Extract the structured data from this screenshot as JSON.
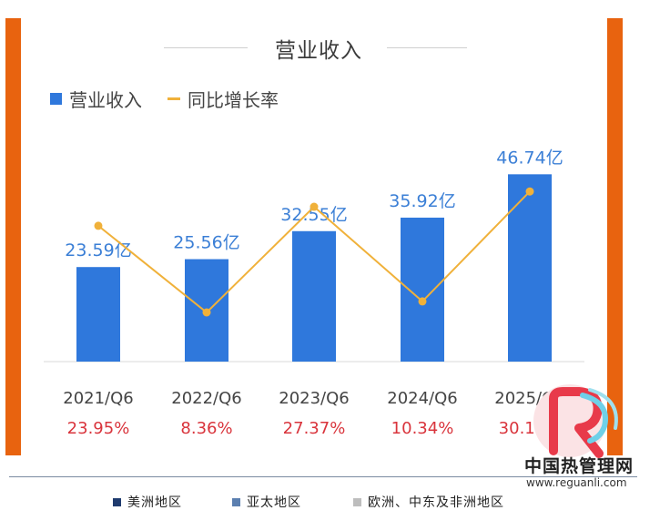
{
  "chart_data": {
    "type": "bar",
    "title": "营业收入",
    "categories": [
      "2021/Q6",
      "2022/Q6",
      "2023/Q6",
      "2024/Q6",
      "2025/Q6"
    ],
    "series": [
      {
        "name": "营业收入",
        "type": "bar",
        "values": [
          23.59,
          25.56,
          32.55,
          35.92,
          46.74
        ],
        "labels": [
          "23.59亿",
          "25.56亿",
          "32.55亿",
          "35.92亿",
          "46.74亿"
        ],
        "color": "#2f78dc"
      },
      {
        "name": "同比增长率",
        "type": "line",
        "values": [
          23.95,
          8.36,
          27.37,
          10.34,
          30.13
        ],
        "labels": [
          "23.95%",
          "8.36%",
          "27.37%",
          "10.34%",
          "30.13%"
        ],
        "color": "#f0b13a",
        "label_color": "#d9343c"
      }
    ],
    "legend_position": "top-left",
    "grid": false
  },
  "footer_legend": [
    {
      "label": "美洲地区",
      "color": "#1f3b6e"
    },
    {
      "label": "亚太地区",
      "color": "#5b7fb0"
    },
    {
      "label": "欧洲、中东及非洲地区",
      "color": "#bdbdbd"
    }
  ],
  "watermark": {
    "name": "中国热管理网",
    "url": "www.reguanli.com"
  }
}
